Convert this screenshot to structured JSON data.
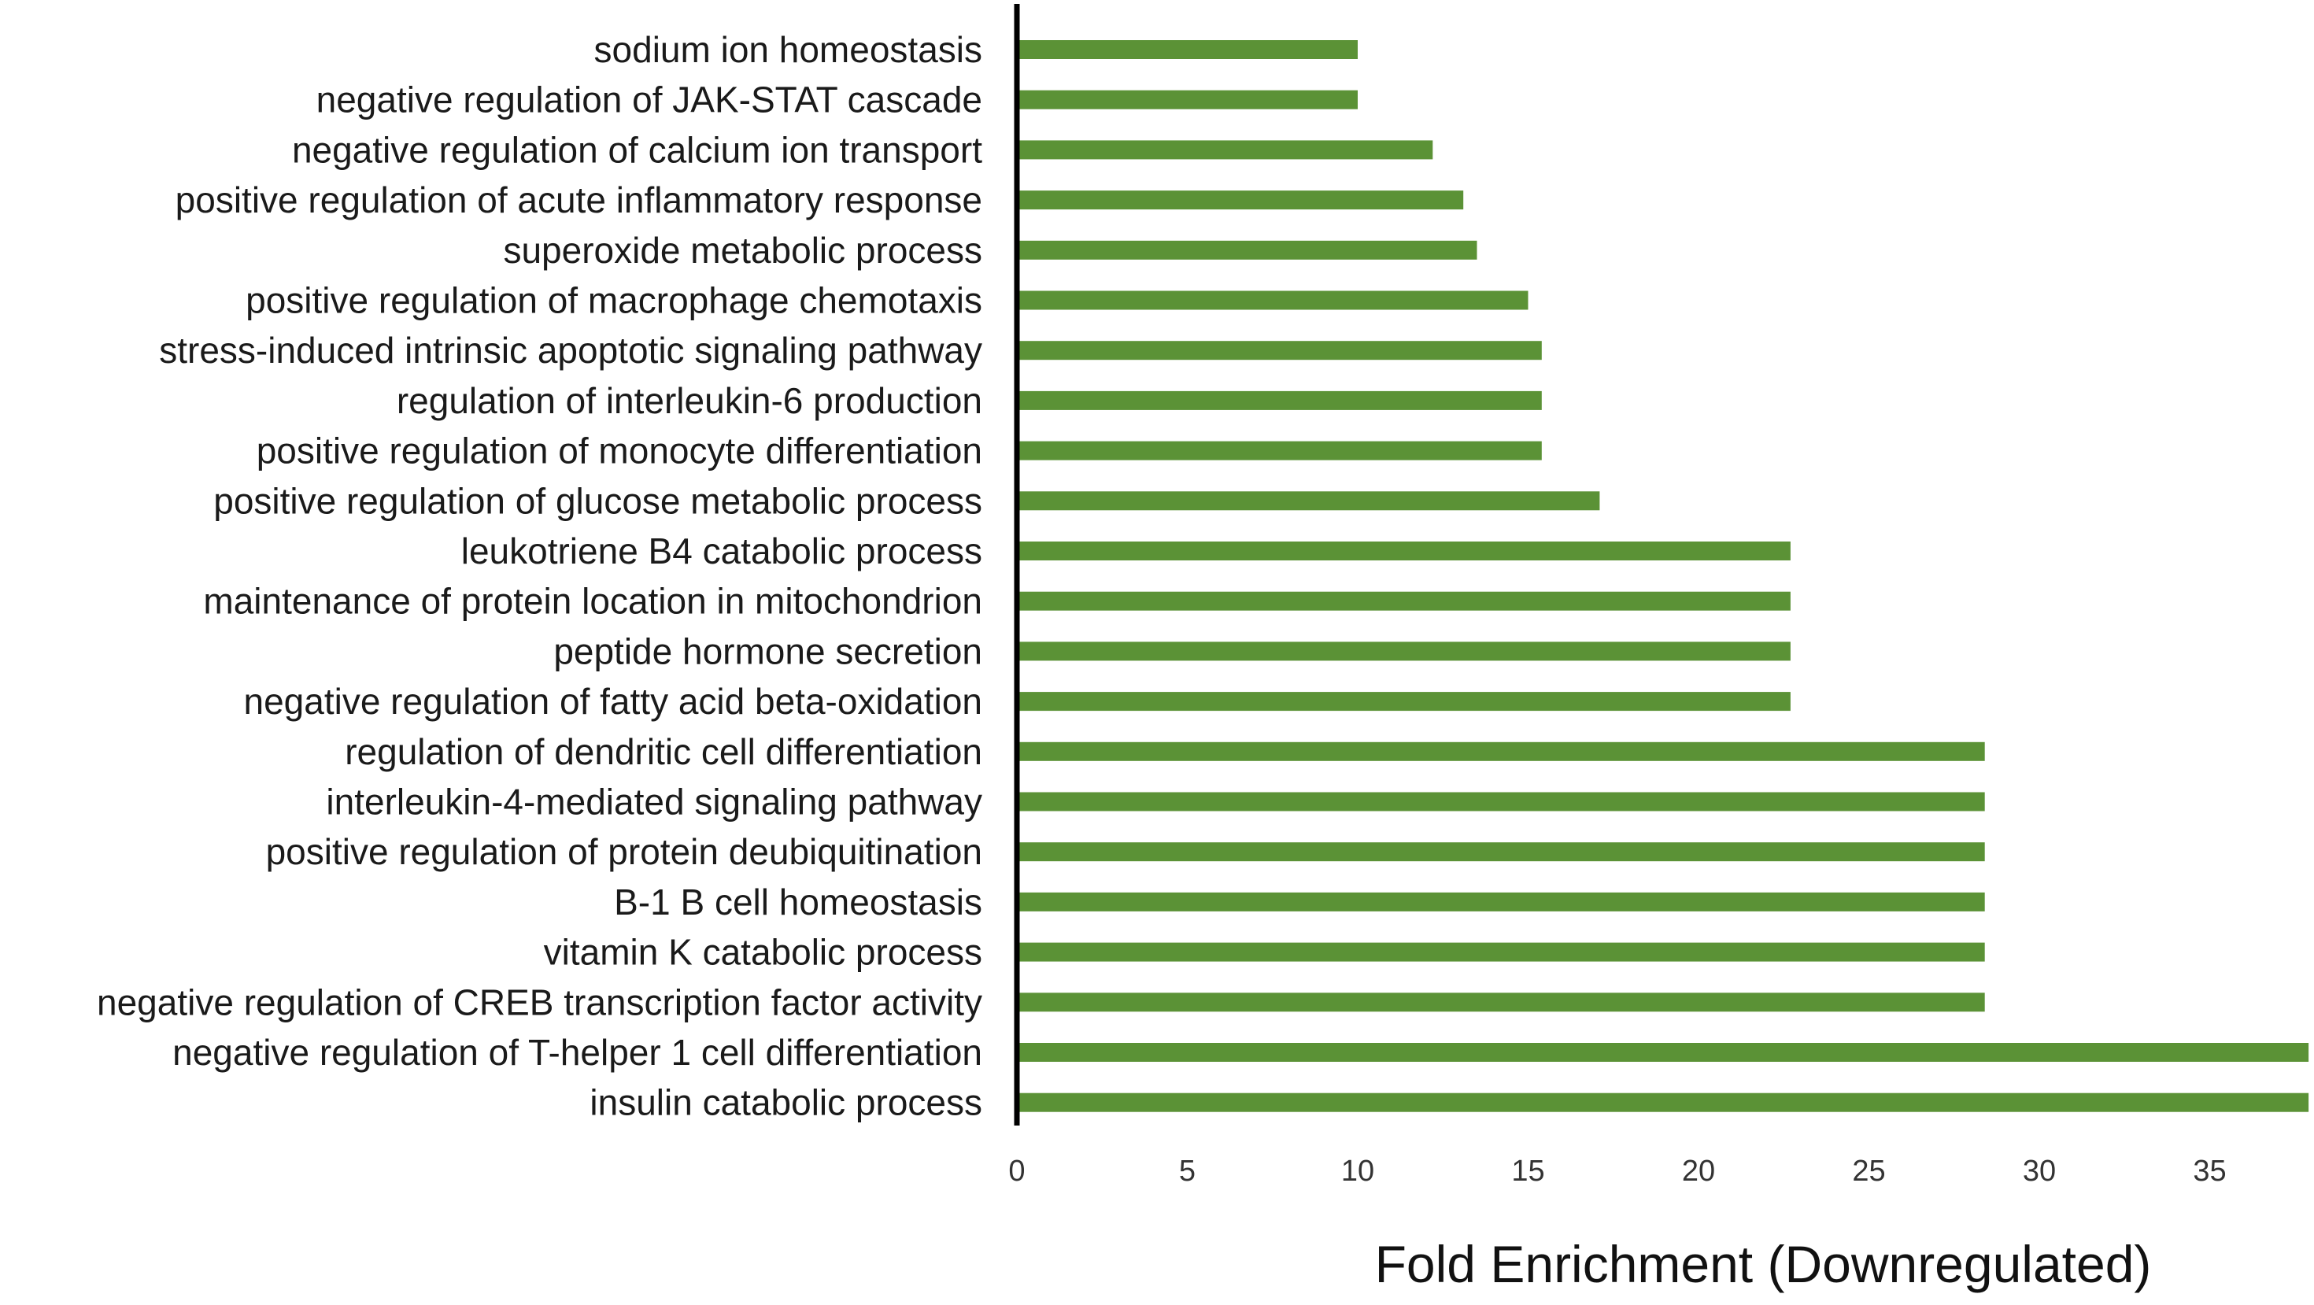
{
  "chart_data": {
    "type": "bar",
    "orientation": "horizontal",
    "xlabel": "Fold Enrichment (Downregulated)",
    "ylabel": "",
    "xlim": [
      0,
      38
    ],
    "x_ticks": [
      0,
      5,
      10,
      15,
      20,
      25,
      30,
      35
    ],
    "grid": false,
    "bar_color": "#5b9236",
    "categories": [
      "sodium ion homeostasis",
      "negative regulation of JAK-STAT cascade",
      "negative regulation of calcium ion transport",
      "positive regulation of acute inflammatory response",
      "superoxide metabolic process",
      "positive regulation of macrophage chemotaxis",
      "stress-induced intrinsic apoptotic signaling pathway",
      "regulation of interleukin-6 production",
      "positive regulation of monocyte differentiation",
      "positive regulation of glucose metabolic process",
      "leukotriene B4 catabolic process",
      "maintenance of protein location in mitochondrion",
      "peptide hormone secretion",
      "negative regulation of fatty acid beta-oxidation",
      "regulation of dendritic cell differentiation",
      "interleukin-4-mediated signaling pathway",
      "positive regulation of protein deubiquitination",
      "B-1 B cell homeostasis",
      "vitamin K catabolic process",
      "negative regulation of CREB transcription factor activity",
      "negative regulation of T-helper 1 cell differentiation",
      "insulin catabolic process"
    ],
    "values": [
      10.0,
      10.0,
      12.2,
      13.1,
      13.5,
      15.0,
      15.4,
      15.4,
      15.4,
      17.1,
      22.7,
      22.7,
      22.7,
      22.7,
      28.4,
      28.4,
      28.4,
      28.4,
      28.4,
      28.4,
      37.9,
      37.9
    ]
  }
}
